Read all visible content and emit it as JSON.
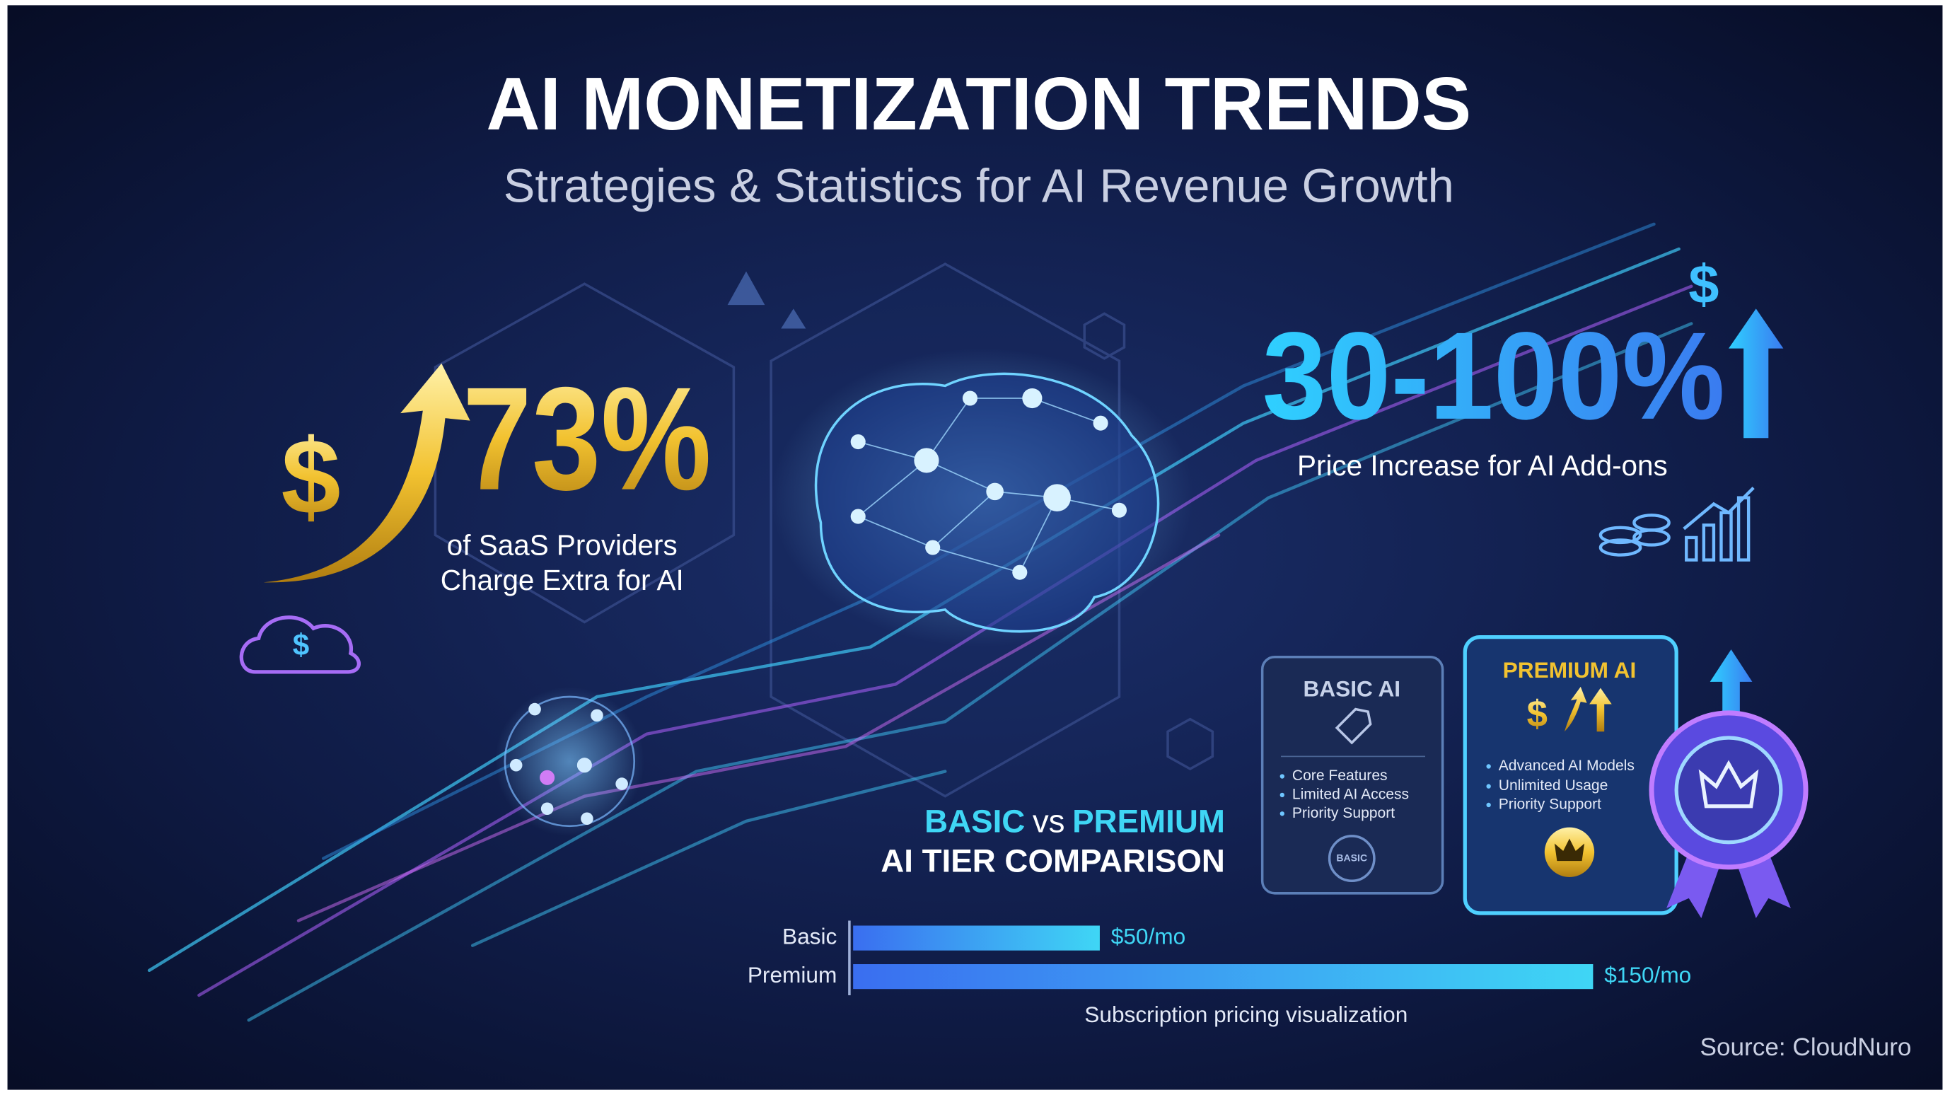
{
  "header": {
    "title": "AI MONETIZATION TRENDS",
    "subtitle": "Strategies & Statistics for AI Revenue Growth"
  },
  "stat_left": {
    "currency": "$",
    "value": "73%",
    "caption": [
      "of SaaS Providers",
      "Charge Extra for AI"
    ],
    "icon": "$"
  },
  "stat_right": {
    "currency": "$",
    "value": "30-100%",
    "caption": "Price Increase for AI Add-ons"
  },
  "comparison": {
    "basic": "BASIC",
    "vs": "vs",
    "premium": "PREMIUM",
    "subtitle": "AI TIER COMPARISON"
  },
  "tiers": [
    {
      "name": "BASIC AI",
      "features": [
        "Core Features",
        "Limited AI Access",
        "Priority Support"
      ],
      "badge": "BASIC"
    },
    {
      "name": "PREMIUM AI",
      "icon": "$",
      "features": [
        "Advanced AI Models",
        "Unlimited Usage",
        "Priority Support"
      ]
    }
  ],
  "chart_data": {
    "type": "bar",
    "orientation": "horizontal",
    "categories": [
      "Basic",
      "Premium"
    ],
    "values": [
      50,
      150
    ],
    "value_labels": [
      "$50/mo",
      "$150/mo"
    ],
    "caption": "Subscription pricing visualization",
    "color": "#3a7bf0"
  },
  "source": "Source: CloudNuro"
}
